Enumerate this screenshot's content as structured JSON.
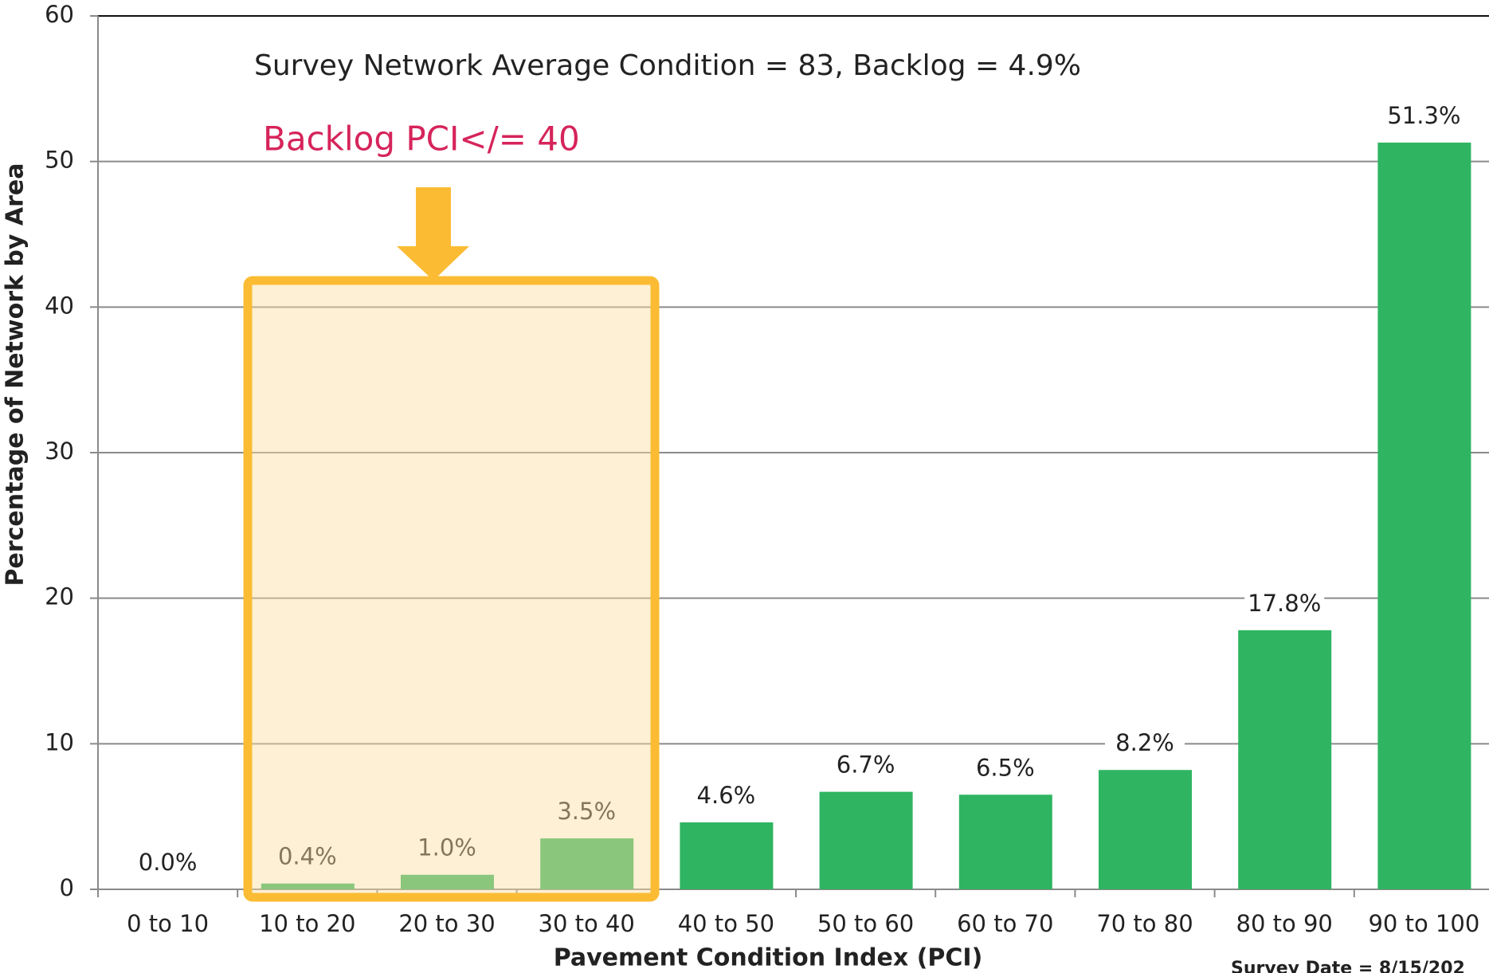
{
  "chart_data": {
    "type": "bar",
    "annotations": {
      "summary": "Survey Network Average Condition  = 83, Backlog = 4.9%",
      "backlog": "Backlog PCI</= 40",
      "survey_date": "Survey Date = 8/15/202"
    },
    "xlabel": "Pavement Condition Index (PCI)",
    "ylabel": "Percentage of Network by Area",
    "categories": [
      "0 to 10",
      "10 to 20",
      "20 to 30",
      "30 to 40",
      "40 to 50",
      "50 to 60",
      "60 to 70",
      "70 to 80",
      "80 to 90",
      "90 to 100"
    ],
    "values": [
      0.0,
      0.4,
      1.0,
      3.5,
      4.6,
      6.7,
      6.5,
      8.2,
      17.8,
      51.3
    ],
    "value_labels": [
      "0.0%",
      "0.4%",
      "1.0%",
      "3.5%",
      "4.6%",
      "6.7%",
      "6.5%",
      "8.2%",
      "17.8%",
      "51.3%"
    ],
    "color": "#2fb562",
    "ylim": [
      0,
      60
    ],
    "yticks": [
      0,
      10,
      20,
      30,
      40,
      50,
      60
    ],
    "grid": true
  }
}
